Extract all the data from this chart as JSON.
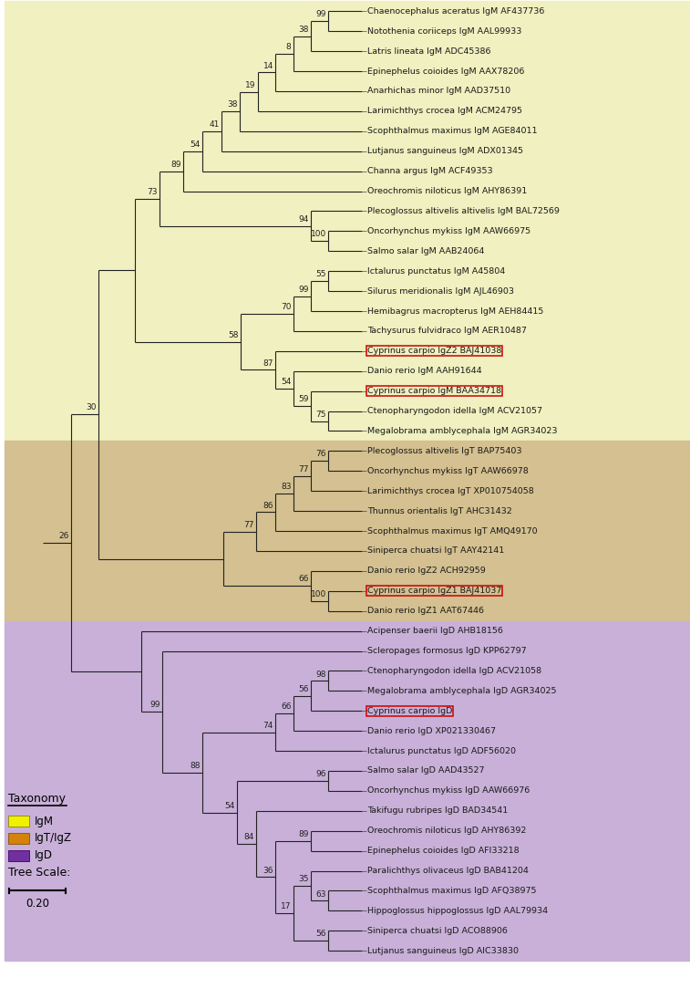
{
  "figure_width": 7.57,
  "figure_height": 10.83,
  "bg_color": "#ffffff",
  "igm_color": "#f0f0c0",
  "igt_color": "#d4c090",
  "igd_color": "#c8b0d8",
  "legend_igm": "#f0f000",
  "legend_igt": "#d4820a",
  "legend_igd": "#7030a0",
  "highlight_color": "#cc0000",
  "tree_line_color": "#222222",
  "bootstrap_color": "#222222",
  "taxa": [
    {
      "name": "Chaenocephalus aceratus IgM AF437736",
      "idx": 0,
      "group": "IgM",
      "highlight": false
    },
    {
      "name": "Notothenia coriiceps IgM AAL99933",
      "idx": 1,
      "group": "IgM",
      "highlight": false
    },
    {
      "name": "Latris lineata IgM ADC45386",
      "idx": 2,
      "group": "IgM",
      "highlight": false
    },
    {
      "name": "Epinephelus coioides IgM AAX78206",
      "idx": 3,
      "group": "IgM",
      "highlight": false
    },
    {
      "name": "Anarhichas minor IgM AAD37510",
      "idx": 4,
      "group": "IgM",
      "highlight": false
    },
    {
      "name": "Larimichthys crocea IgM ACM24795",
      "idx": 5,
      "group": "IgM",
      "highlight": false
    },
    {
      "name": "Scophthalmus maximus IgM AGE84011",
      "idx": 6,
      "group": "IgM",
      "highlight": false
    },
    {
      "name": "Lutjanus sanguineus IgM ADX01345",
      "idx": 7,
      "group": "IgM",
      "highlight": false
    },
    {
      "name": "Channa argus IgM ACF49353",
      "idx": 8,
      "group": "IgM",
      "highlight": false
    },
    {
      "name": "Oreochromis niloticus IgM AHY86391",
      "idx": 9,
      "group": "IgM",
      "highlight": false
    },
    {
      "name": "Plecoglossus altivelis altivelis IgM BAL72569",
      "idx": 10,
      "group": "IgM",
      "highlight": false
    },
    {
      "name": "Oncorhynchus mykiss IgM AAW66975",
      "idx": 11,
      "group": "IgM",
      "highlight": false
    },
    {
      "name": "Salmo salar IgM AAB24064",
      "idx": 12,
      "group": "IgM",
      "highlight": false
    },
    {
      "name": "Ictalurus punctatus IgM A45804",
      "idx": 13,
      "group": "IgM",
      "highlight": false
    },
    {
      "name": "Silurus meridionalis IgM AJL46903",
      "idx": 14,
      "group": "IgM",
      "highlight": false
    },
    {
      "name": "Hemibagrus macropterus IgM AEH84415",
      "idx": 15,
      "group": "IgM",
      "highlight": false
    },
    {
      "name": "Tachysurus fulvidraco IgM AER10487",
      "idx": 16,
      "group": "IgM",
      "highlight": false
    },
    {
      "name": "Cyprinus carpio IgZ2 BAJ41038",
      "idx": 17,
      "group": "IgM",
      "highlight": true
    },
    {
      "name": "Danio rerio IgM AAH91644",
      "idx": 18,
      "group": "IgM",
      "highlight": false
    },
    {
      "name": "Cyprinus carpio IgM BAA34718",
      "idx": 19,
      "group": "IgM",
      "highlight": true
    },
    {
      "name": "Ctenopharyngodon idella IgM ACV21057",
      "idx": 20,
      "group": "IgM",
      "highlight": false
    },
    {
      "name": "Megalobrama amblycephala IgM AGR34023",
      "idx": 21,
      "group": "IgM",
      "highlight": false
    },
    {
      "name": "Plecoglossus altivelis IgT BAP75403",
      "idx": 22,
      "group": "IgT",
      "highlight": false
    },
    {
      "name": "Oncorhynchus mykiss IgT AAW66978",
      "idx": 23,
      "group": "IgT",
      "highlight": false
    },
    {
      "name": "Larimichthys crocea IgT XP010754058",
      "idx": 24,
      "group": "IgT",
      "highlight": false
    },
    {
      "name": "Thunnus orientalis IgT AHC31432",
      "idx": 25,
      "group": "IgT",
      "highlight": false
    },
    {
      "name": "Scophthalmus maximus IgT AMQ49170",
      "idx": 26,
      "group": "IgT",
      "highlight": false
    },
    {
      "name": "Siniperca chuatsi IgT AAY42141",
      "idx": 27,
      "group": "IgT",
      "highlight": false
    },
    {
      "name": "Danio rerio IgZ2 ACH92959",
      "idx": 28,
      "group": "IgT",
      "highlight": false
    },
    {
      "name": "Cyprinus carpio IgZ1 BAJ41037",
      "idx": 29,
      "group": "IgT",
      "highlight": true
    },
    {
      "name": "Danio rerio IgZ1 AAT67446",
      "idx": 30,
      "group": "IgT",
      "highlight": false
    },
    {
      "name": "Acipenser baerii IgD AHB18156",
      "idx": 31,
      "group": "IgD",
      "highlight": false
    },
    {
      "name": "Scleropages formosus IgD KPP62797",
      "idx": 32,
      "group": "IgD",
      "highlight": false
    },
    {
      "name": "Ctenopharyngodon idella IgD ACV21058",
      "idx": 33,
      "group": "IgD",
      "highlight": false
    },
    {
      "name": "Megalobrama amblycephala IgD AGR34025",
      "idx": 34,
      "group": "IgD",
      "highlight": false
    },
    {
      "name": "Cyprinus carpio IgD",
      "idx": 35,
      "group": "IgD",
      "highlight": true
    },
    {
      "name": "Danio rerio IgD XP021330467",
      "idx": 36,
      "group": "IgD",
      "highlight": false
    },
    {
      "name": "Ictalurus punctatus IgD ADF56020",
      "idx": 37,
      "group": "IgD",
      "highlight": false
    },
    {
      "name": "Salmo salar IgD AAD43527",
      "idx": 38,
      "group": "IgD",
      "highlight": false
    },
    {
      "name": "Oncorhynchus mykiss IgD AAW66976",
      "idx": 39,
      "group": "IgD",
      "highlight": false
    },
    {
      "name": "Takifugu rubripes IgD BAD34541",
      "idx": 40,
      "group": "IgD",
      "highlight": false
    },
    {
      "name": "Oreochromis niloticus IgD AHY86392",
      "idx": 41,
      "group": "IgD",
      "highlight": false
    },
    {
      "name": "Epinephelus coioides IgD AFI33218",
      "idx": 42,
      "group": "IgD",
      "highlight": false
    },
    {
      "name": "Paralichthys olivaceus IgD BAB41204",
      "idx": 43,
      "group": "IgD",
      "highlight": false
    },
    {
      "name": "Scophthalmus maximus IgD AFQ38975",
      "idx": 44,
      "group": "IgD",
      "highlight": false
    },
    {
      "name": "Hippoglossus hippoglossus IgD AAL79934",
      "idx": 45,
      "group": "IgD",
      "highlight": false
    },
    {
      "name": "Siniperca chuatsi IgD ACO88906",
      "idx": 46,
      "group": "IgD",
      "highlight": false
    },
    {
      "name": "Lutjanus sanguineus IgD AIC33830",
      "idx": 47,
      "group": "IgD",
      "highlight": false
    }
  ],
  "igm_range": [
    0,
    21
  ],
  "igt_range": [
    22,
    30
  ],
  "igd_range": [
    31,
    47
  ]
}
